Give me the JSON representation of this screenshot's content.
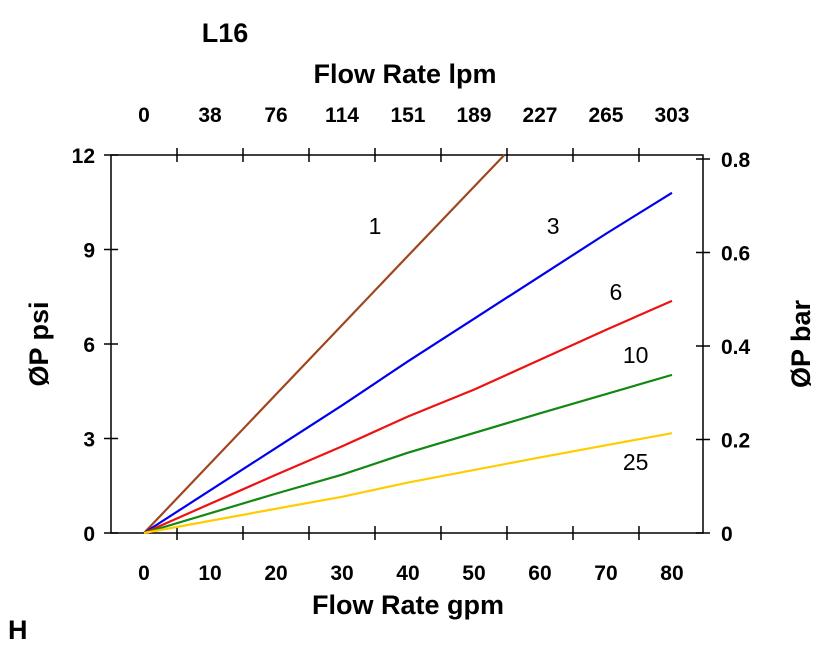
{
  "chart_data": {
    "type": "line",
    "title": "L16",
    "corner_label": "H",
    "xlabel": "Flow Rate gpm",
    "x2label": "Flow Rate lpm",
    "ylabel": "ØP psi",
    "y2label": "ØP bar",
    "xlim": [
      -5,
      84.7
    ],
    "ylim": [
      0,
      12
    ],
    "y2lim": [
      0,
      0.8
    ],
    "grid": false,
    "x_ticks": [
      0,
      10,
      20,
      30,
      40,
      50,
      60,
      70,
      80
    ],
    "x2_tick_labels": [
      "0",
      "38",
      "76",
      "114",
      "151",
      "189",
      "227",
      "265",
      "303"
    ],
    "y_ticks": [
      0,
      3,
      6,
      9,
      12
    ],
    "y2_ticks": [
      "0",
      "0.2",
      "0.4",
      "0.6",
      "0.8"
    ],
    "series": [
      {
        "name": "1",
        "color": "#a0461e",
        "label_at": [
          35,
          9.5
        ],
        "points": [
          [
            0,
            0
          ],
          [
            20,
            4.4
          ],
          [
            30,
            6.6
          ],
          [
            40,
            8.8
          ],
          [
            54.6,
            12
          ]
        ]
      },
      {
        "name": "3",
        "color": "#0000ee",
        "label_at": [
          62,
          9.5
        ],
        "points": [
          [
            0,
            0
          ],
          [
            20,
            2.7
          ],
          [
            30,
            4.05
          ],
          [
            40,
            5.45
          ],
          [
            50,
            6.8
          ],
          [
            60,
            8.15
          ],
          [
            70,
            9.5
          ],
          [
            80,
            10.8
          ]
        ]
      },
      {
        "name": "6",
        "color": "#ee1111",
        "label_at": [
          71.5,
          7.4
        ],
        "points": [
          [
            0,
            0
          ],
          [
            20,
            1.85
          ],
          [
            30,
            2.75
          ],
          [
            40,
            3.7
          ],
          [
            50,
            4.55
          ],
          [
            60,
            5.5
          ],
          [
            70,
            6.45
          ],
          [
            80,
            7.37
          ]
        ]
      },
      {
        "name": "10",
        "color": "#118811",
        "label_at": [
          74.5,
          5.4
        ],
        "points": [
          [
            0,
            0
          ],
          [
            20,
            1.25
          ],
          [
            30,
            1.85
          ],
          [
            40,
            2.55
          ],
          [
            60,
            3.8
          ],
          [
            80,
            5.02
          ]
        ]
      },
      {
        "name": "25",
        "color": "#ffcc00",
        "label_at": [
          74.5,
          2.0
        ],
        "points": [
          [
            0,
            0
          ],
          [
            20,
            0.77
          ],
          [
            30,
            1.15
          ],
          [
            40,
            1.6
          ],
          [
            60,
            2.4
          ],
          [
            80,
            3.17
          ]
        ]
      }
    ]
  }
}
